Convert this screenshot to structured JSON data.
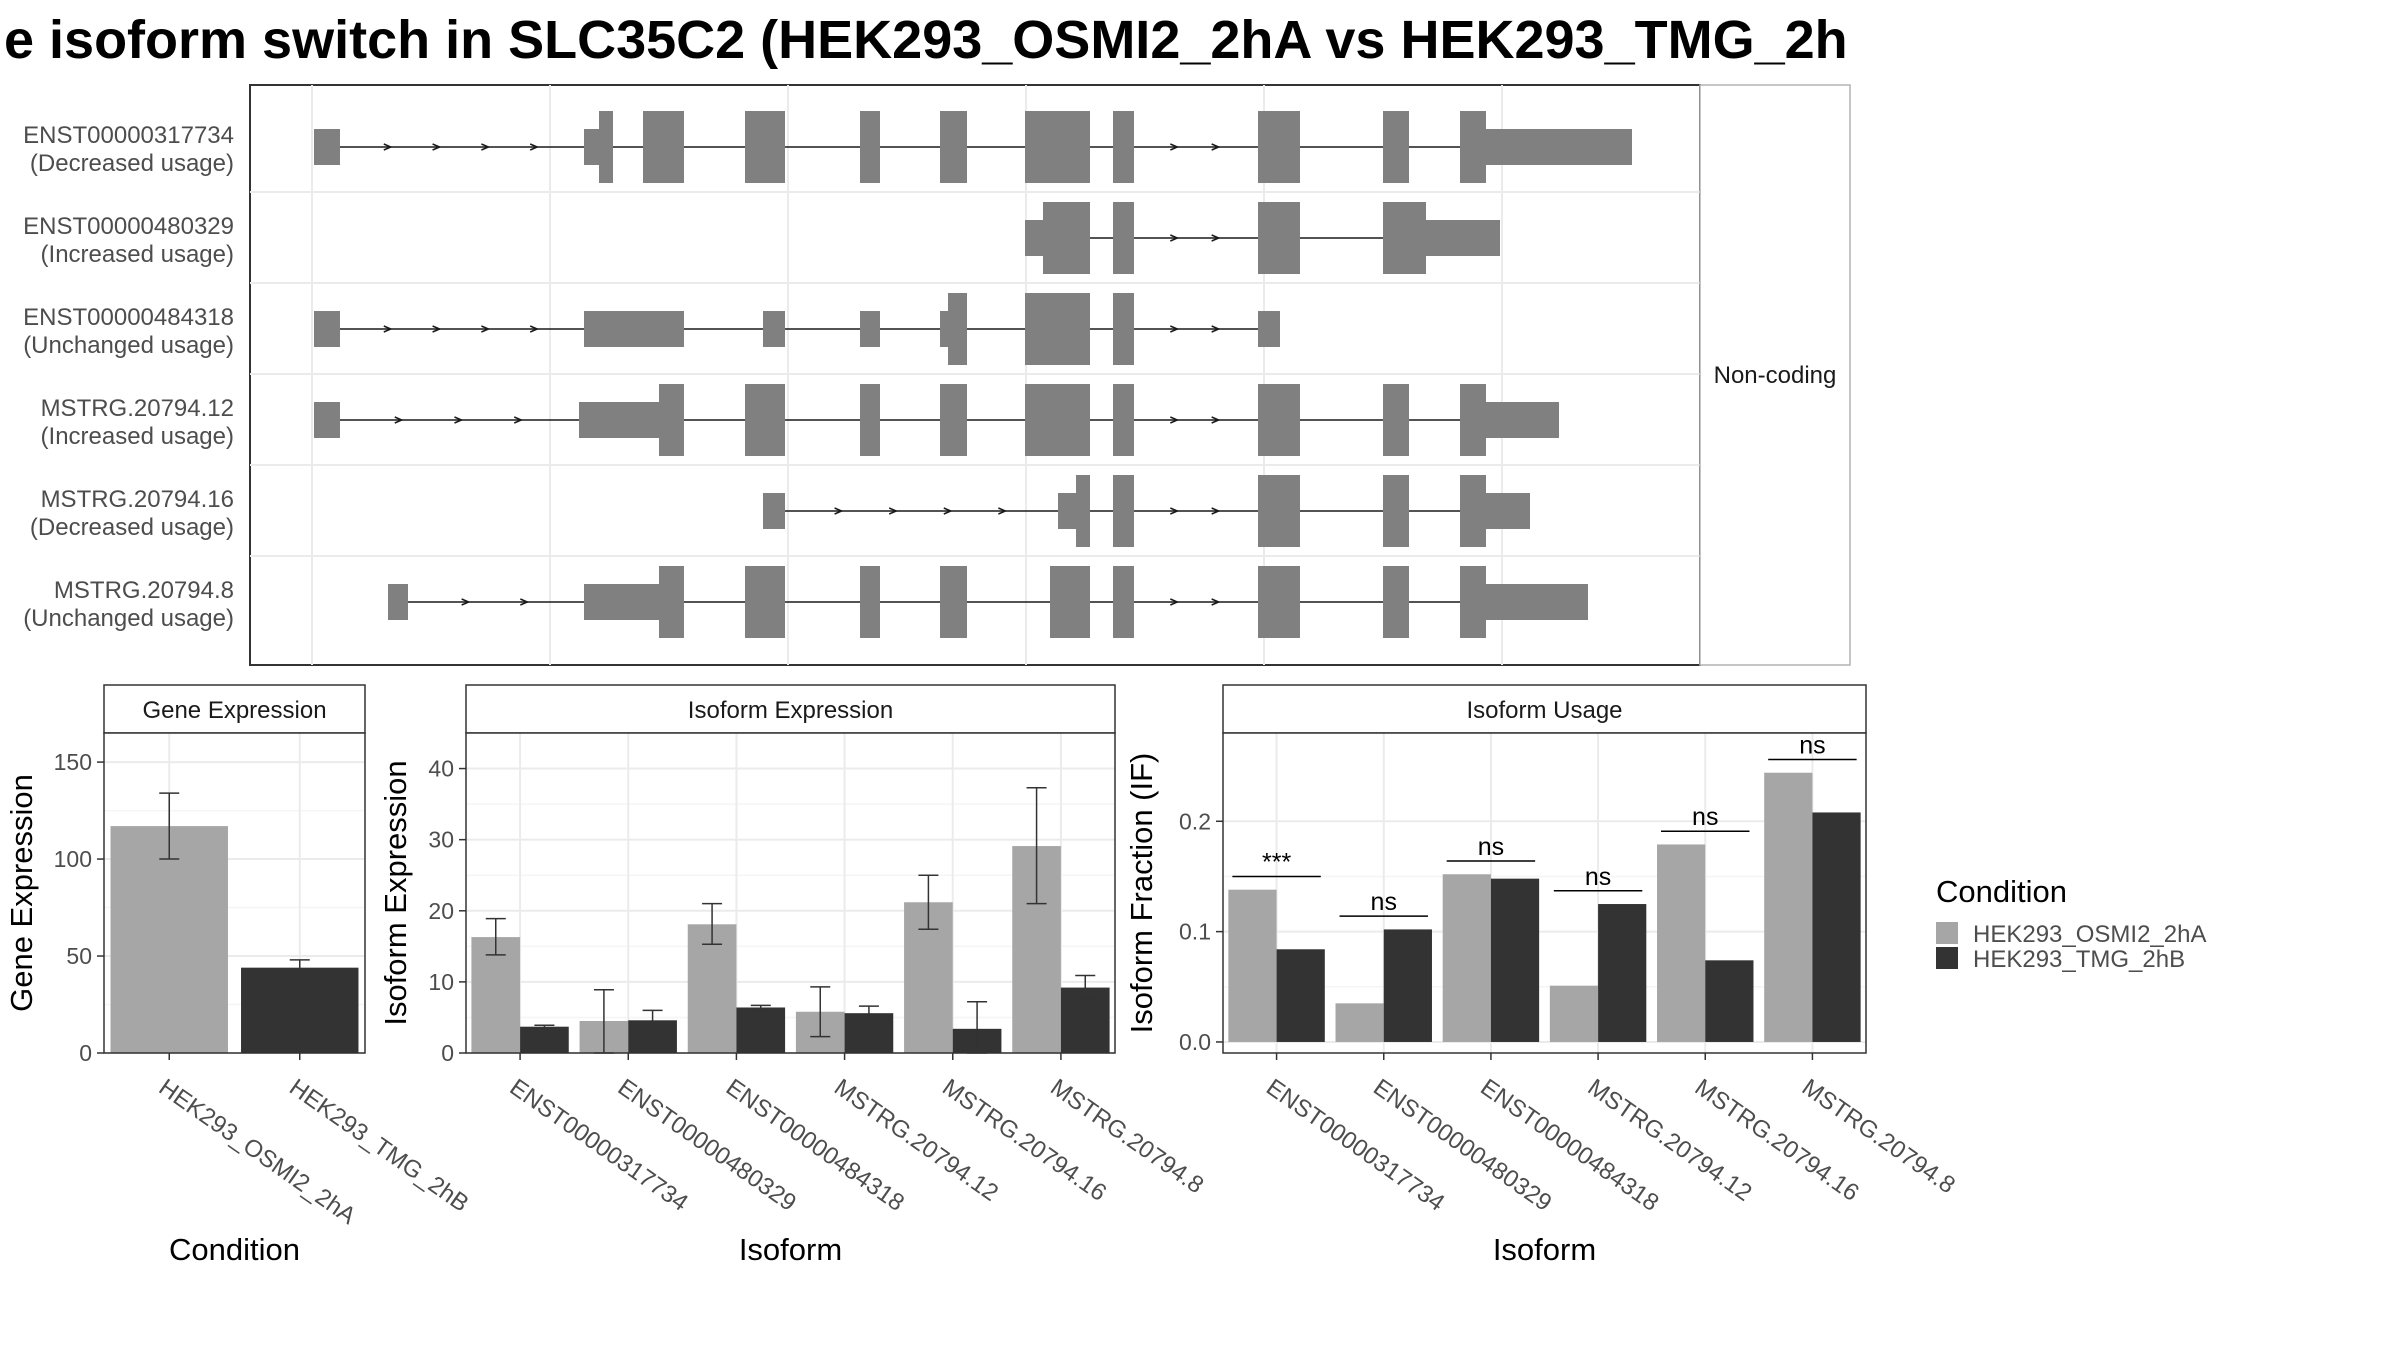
{
  "chart_data": [
    {
      "type": "transcript-structure",
      "title": "e isoform switch in SLC35C2 (HEK293_OSMI2_2hA vs HEK293_TMG_2h",
      "facet_label": "Non-coding",
      "transcripts": [
        {
          "name": "ENST00000317734",
          "usage": "(Decreased usage)"
        },
        {
          "name": "ENST00000480329",
          "usage": "(Increased usage)"
        },
        {
          "name": "ENST00000484318",
          "usage": "(Unchanged usage)"
        },
        {
          "name": "MSTRG.20794.12",
          "usage": "(Increased usage)"
        },
        {
          "name": "MSTRG.20794.16",
          "usage": "(Decreased usage)"
        },
        {
          "name": "MSTRG.20794.8",
          "usage": "(Unchanged usage)"
        }
      ]
    },
    {
      "type": "bar",
      "panel": "Gene Expression",
      "categories": [
        "HEK293_OSMI2_2hA",
        "HEK293_TMG_2hB"
      ],
      "values": [
        117,
        44
      ],
      "errors": [
        [
          100,
          134
        ],
        [
          41,
          48
        ]
      ],
      "xlabel": "Condition",
      "ylabel": "Gene Expression",
      "ylim": [
        0,
        165
      ],
      "yticks": [
        0,
        50,
        100,
        150
      ]
    },
    {
      "type": "bar",
      "panel": "Isoform Expression",
      "categories": [
        "ENST00000317734",
        "ENST00000480329",
        "ENST00000484318",
        "MSTRG.20794.12",
        "MSTRG.20794.16",
        "MSTRG.20794.8"
      ],
      "series": [
        {
          "name": "HEK293_OSMI2_2hA",
          "values": [
            16.3,
            4.5,
            18.1,
            5.8,
            21.2,
            29.1
          ],
          "errors": [
            [
              13.8,
              18.9
            ],
            [
              0,
              8.9
            ],
            [
              15.3,
              21.0
            ],
            [
              2.3,
              9.3
            ],
            [
              17.4,
              25.0
            ],
            [
              21.0,
              37.3
            ]
          ]
        },
        {
          "name": "HEK293_TMG_2hB",
          "values": [
            3.7,
            4.6,
            6.4,
            5.6,
            3.4,
            9.2
          ],
          "errors": [
            [
              3.5,
              3.9
            ],
            [
              3.3,
              6.0
            ],
            [
              6.1,
              6.7
            ],
            [
              4.7,
              6.6
            ],
            [
              0,
              7.2
            ],
            [
              7.6,
              10.9
            ]
          ]
        }
      ],
      "xlabel": "Isoform",
      "ylabel": "Isoform Expression",
      "ylim": [
        0,
        45
      ],
      "yticks": [
        0,
        10,
        20,
        30,
        40
      ]
    },
    {
      "type": "bar",
      "panel": "Isoform Usage",
      "categories": [
        "ENST00000317734",
        "ENST00000480329",
        "ENST00000484318",
        "MSTRG.20794.12",
        "MSTRG.20794.16",
        "MSTRG.20794.8"
      ],
      "series": [
        {
          "name": "HEK293_OSMI2_2hA",
          "values": [
            0.138,
            0.035,
            0.152,
            0.051,
            0.179,
            0.244
          ]
        },
        {
          "name": "HEK293_TMG_2hB",
          "values": [
            0.084,
            0.102,
            0.148,
            0.125,
            0.074,
            0.208
          ]
        }
      ],
      "significance": [
        "***",
        "ns",
        "ns",
        "ns",
        "ns",
        "ns"
      ],
      "xlabel": "Isoform",
      "ylabel": "Isoform Fraction (IF)",
      "ylim": [
        -0.01,
        0.28
      ],
      "yticks": [
        0.0,
        0.1,
        0.2
      ],
      "ytick_labels": [
        "0.0",
        "0.1",
        "0.2"
      ]
    }
  ],
  "legend": {
    "title": "Condition",
    "entries": [
      "HEK293_OSMI2_2hA",
      "HEK293_TMG_2hB"
    ],
    "colors": [
      "#a6a6a6",
      "#333333"
    ]
  },
  "colors": {
    "exon": "#808080",
    "grid": "#ebebeb",
    "panel_border": "#333333",
    "strip_fill": "#ffffff"
  }
}
